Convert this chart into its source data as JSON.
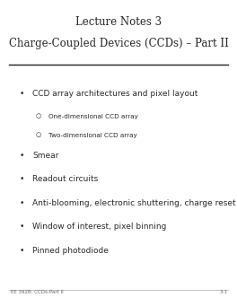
{
  "title_line1": "Lecture Notes 3",
  "title_line2": "Charge-Coupled Devices (CCDs) – Part II",
  "title_fontsize": 8.5,
  "title_color": "#2a2a2a",
  "bg_color": "#ffffff",
  "line_color": "#222222",
  "bullet_items": [
    {
      "text": "CCD array architectures and pixel layout",
      "level": 0,
      "fontsize": 6.5
    },
    {
      "text": "One-dimensional CCD array",
      "level": 1,
      "fontsize": 5.2
    },
    {
      "text": "Two-dimensional CCD array",
      "level": 1,
      "fontsize": 5.2
    },
    {
      "text": "Smear",
      "level": 0,
      "fontsize": 6.5
    },
    {
      "text": "Readout circuits",
      "level": 0,
      "fontsize": 6.5
    },
    {
      "text": "Anti-blooming, electronic shuttering, charge reset operation",
      "level": 0,
      "fontsize": 6.5
    },
    {
      "text": "Window of interest, pixel binning",
      "level": 0,
      "fontsize": 6.5
    },
    {
      "text": "Pinned photodiode",
      "level": 0,
      "fontsize": 6.5
    }
  ],
  "footer_left": "EE 392B: CCDs-Part II",
  "footer_right": "3-1",
  "footer_fontsize": 4.0,
  "footer_color": "#666666",
  "fig_width": 2.64,
  "fig_height": 3.41,
  "dpi": 100
}
